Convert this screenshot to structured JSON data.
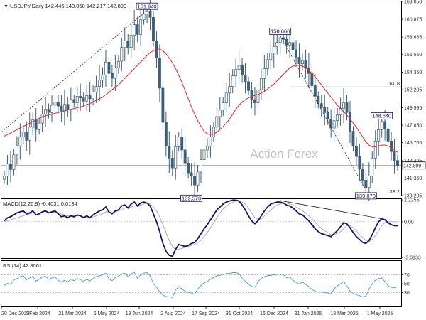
{
  "chart_data": [
    {
      "panel": "price",
      "type": "candlestick",
      "header": "USDJPY,Daily  142.445 143.050 142.217 142.899",
      "ylim": [
        139.205,
        163.05
      ],
      "y_ticks": [
        "163.050",
        "160.875",
        "158.665",
        "156.560",
        "154.350",
        "152.205",
        "149.995",
        "147.850",
        "145.705",
        "143.495",
        "141.350",
        "139.205"
      ],
      "last_price_label": "142.899",
      "last_price": 142.899,
      "watermark": "Action Forex",
      "close_series": [
        141.6,
        143.1,
        142.4,
        144.2,
        145.3,
        146.4,
        147.0,
        146.0,
        147.6,
        148.5,
        147.3,
        148.1,
        149.2,
        149.8,
        149.4,
        150.3,
        150.7,
        150.2,
        149.6,
        150.4,
        149.8,
        151.0,
        150.6,
        151.4,
        151.2,
        150.8,
        151.5,
        151.1,
        151.9,
        152.6,
        153.4,
        154.0,
        155.6,
        154.2,
        153.6,
        154.9,
        155.7,
        157.4,
        158.2,
        157.4,
        158.9,
        160.2,
        159.0,
        160.8,
        161.5,
        161.8,
        161.1,
        158.2,
        156.1,
        152.4,
        148.2,
        145.3,
        143.8,
        142.6,
        145.2,
        146.4,
        144.8,
        143.2,
        142.0,
        141.6,
        140.5,
        142.1,
        143.6,
        144.8,
        145.3,
        146.4,
        147.6,
        148.9,
        149.7,
        150.6,
        151.8,
        152.6,
        153.9,
        154.7,
        155.2,
        154.0,
        153.2,
        152.1,
        151.0,
        150.6,
        152.2,
        153.6,
        154.8,
        155.9,
        156.7,
        157.5,
        158.0,
        158.6,
        158.4,
        157.7,
        158.0,
        157.1,
        156.2,
        155.4,
        155.8,
        154.9,
        154.2,
        152.7,
        151.4,
        150.5,
        150.0,
        149.4,
        148.6,
        147.5,
        148.4,
        149.1,
        149.9,
        150.6,
        149.4,
        147.1,
        145.3,
        144.0,
        142.5,
        141.1,
        140.2,
        141.6,
        143.8,
        145.9,
        147.3,
        148.3,
        147.4,
        145.9,
        144.6,
        143.5,
        142.9
      ],
      "sma_series": [
        146.5,
        146.7,
        146.9,
        147.1,
        147.3,
        147.5,
        147.7,
        147.9,
        148.1,
        148.3,
        148.5,
        148.7,
        148.9,
        149.0,
        149.1,
        149.2,
        149.3,
        149.4,
        149.5,
        149.6,
        149.7,
        149.8,
        149.9,
        150.0,
        150.1,
        150.2,
        150.4,
        150.5,
        150.7,
        150.9,
        151.1,
        151.3,
        151.6,
        151.9,
        152.2,
        152.5,
        152.8,
        153.2,
        153.6,
        154.0,
        154.4,
        154.8,
        155.2,
        155.6,
        156.0,
        156.4,
        156.8,
        157.0,
        157.2,
        157.2,
        157.0,
        156.6,
        156.1,
        155.5,
        154.8,
        154.0,
        153.1,
        152.1,
        151.1,
        150.1,
        149.2,
        148.4,
        147.7,
        147.1,
        146.8,
        146.7,
        146.8,
        147.0,
        147.3,
        147.7,
        148.1,
        148.6,
        149.2,
        149.8,
        150.3,
        150.7,
        151.0,
        151.2,
        151.4,
        151.5,
        151.6,
        151.8,
        152.0,
        152.3,
        152.6,
        152.9,
        153.3,
        153.7,
        154.1,
        154.5,
        154.9,
        155.1,
        155.2,
        155.2,
        155.1,
        154.9,
        154.6,
        154.2,
        153.8,
        153.3,
        152.8,
        152.3,
        151.8,
        151.3,
        150.8,
        150.3,
        149.9,
        149.5,
        149.1,
        148.6,
        148.1,
        147.6,
        147.0,
        146.4,
        145.8,
        145.4,
        145.2,
        145.2,
        145.3,
        145.4,
        145.4,
        145.3,
        145.1,
        144.8,
        144.5
      ],
      "annotations": [
        {
          "text": "161.940",
          "value": 161.94
        },
        {
          "text": "139.570",
          "value": 139.57
        },
        {
          "text": "158.860",
          "value": 158.86
        },
        {
          "text": "148.640",
          "value": 148.64
        },
        {
          "text": "139.870",
          "value": 139.87
        },
        {
          "text": "61.8",
          "value": 61.8
        },
        {
          "text": "38.2",
          "value": 38.2
        }
      ]
    },
    {
      "panel": "macd",
      "type": "line",
      "header": "MACD(12,26,9) -0.4031 0.0134",
      "ylim": [
        -3.6133,
        2.2255
      ],
      "y_ticks": [
        "2.2255",
        "0.00",
        "-3.6133"
      ],
      "macd_series": [
        0.1,
        0.4,
        0.5,
        0.7,
        0.9,
        1.0,
        1.1,
        0.8,
        0.9,
        1.1,
        0.7,
        0.8,
        1.0,
        1.1,
        0.9,
        1.0,
        1.1,
        0.8,
        0.5,
        0.6,
        0.4,
        0.6,
        0.5,
        0.7,
        0.6,
        0.4,
        0.6,
        0.4,
        0.7,
        0.9,
        1.1,
        1.2,
        1.5,
        1.0,
        0.8,
        1.1,
        1.2,
        1.6,
        1.7,
        1.4,
        1.8,
        2.0,
        1.6,
        1.9,
        2.0,
        1.9,
        1.6,
        0.8,
        0.0,
        -1.0,
        -2.2,
        -3.0,
        -3.4,
        -3.5,
        -2.8,
        -2.3,
        -2.4,
        -2.5,
        -2.4,
        -2.2,
        -2.1,
        -1.7,
        -1.2,
        -0.7,
        -0.3,
        0.2,
        0.7,
        1.2,
        1.5,
        1.8,
        2.0,
        2.1,
        2.2,
        2.2,
        2.1,
        1.7,
        1.2,
        0.6,
        0.1,
        -0.2,
        0.1,
        0.6,
        1.1,
        1.5,
        1.8,
        1.9,
        2.0,
        2.0,
        1.9,
        1.7,
        1.6,
        1.4,
        1.1,
        0.8,
        0.7,
        0.4,
        0.1,
        -0.3,
        -0.7,
        -1.0,
        -1.2,
        -1.3,
        -1.4,
        -1.5,
        -1.2,
        -0.9,
        -0.5,
        -0.1,
        -0.2,
        -0.6,
        -1.1,
        -1.5,
        -1.8,
        -2.1,
        -2.2,
        -1.9,
        -1.3,
        -0.6,
        0.0,
        0.3,
        0.2,
        -0.1,
        -0.3,
        -0.4,
        -0.4031
      ],
      "signal_series": [
        0.0,
        0.1,
        0.2,
        0.3,
        0.4,
        0.5,
        0.6,
        0.7,
        0.8,
        0.9,
        0.9,
        0.9,
        0.9,
        0.9,
        0.9,
        0.9,
        1.0,
        0.9,
        0.8,
        0.7,
        0.6,
        0.6,
        0.6,
        0.6,
        0.6,
        0.5,
        0.5,
        0.5,
        0.5,
        0.6,
        0.7,
        0.8,
        1.0,
        1.0,
        0.9,
        1.0,
        1.1,
        1.2,
        1.4,
        1.4,
        1.5,
        1.6,
        1.6,
        1.7,
        1.8,
        1.9,
        1.8,
        1.5,
        1.1,
        0.5,
        -0.3,
        -1.1,
        -1.9,
        -2.5,
        -2.8,
        -2.8,
        -2.7,
        -2.6,
        -2.5,
        -2.4,
        -2.3,
        -2.1,
        -1.9,
        -1.5,
        -1.1,
        -0.6,
        -0.1,
        0.4,
        0.9,
        1.3,
        1.6,
        1.8,
        2.0,
        2.1,
        2.1,
        2.0,
        1.8,
        1.4,
        0.9,
        0.4,
        0.2,
        0.3,
        0.6,
        0.9,
        1.2,
        1.5,
        1.7,
        1.8,
        1.9,
        1.9,
        1.8,
        1.7,
        1.5,
        1.3,
        1.1,
        0.9,
        0.6,
        0.3,
        0.0,
        -0.4,
        -0.7,
        -0.9,
        -1.1,
        -1.3,
        -1.3,
        -1.2,
        -1.0,
        -0.7,
        -0.4,
        -0.4,
        -0.6,
        -0.9,
        -1.3,
        -1.6,
        -1.9,
        -2.0,
        -1.8,
        -1.4,
        -0.9,
        -0.4,
        -0.1,
        0.0,
        0.0,
        0.0,
        0.0134
      ]
    },
    {
      "panel": "rsi",
      "type": "line",
      "header": "RSI(14) 42.8061",
      "ylim": [
        0,
        100
      ],
      "levels": [
        70,
        30
      ],
      "y_ticks": [
        "70",
        "50",
        "30"
      ],
      "rsi_series": [
        46,
        51,
        48,
        58,
        62,
        66,
        68,
        59,
        63,
        67,
        56,
        60,
        65,
        67,
        60,
        63,
        65,
        58,
        53,
        58,
        54,
        60,
        57,
        62,
        59,
        55,
        60,
        56,
        62,
        66,
        68,
        70,
        74,
        61,
        57,
        64,
        67,
        72,
        74,
        66,
        72,
        76,
        62,
        70,
        74,
        75,
        68,
        50,
        42,
        32,
        24,
        21,
        20,
        19,
        36,
        44,
        38,
        33,
        30,
        29,
        26,
        38,
        46,
        52,
        55,
        60,
        64,
        68,
        69,
        71,
        73,
        73,
        75,
        75,
        73,
        62,
        56,
        49,
        44,
        42,
        55,
        62,
        66,
        68,
        69,
        70,
        71,
        72,
        70,
        63,
        65,
        58,
        53,
        49,
        54,
        48,
        44,
        37,
        33,
        31,
        32,
        30,
        29,
        27,
        38,
        45,
        50,
        55,
        45,
        33,
        28,
        25,
        23,
        20,
        22,
        38,
        50,
        58,
        62,
        63,
        55,
        45,
        42,
        41,
        42.8061
      ]
    }
  ],
  "x_ticks": [
    "20 Dec 2023",
    "6 Feb 2024",
    "21 Mar 2024",
    "6 May 2024",
    "19 Jun 2024",
    "2 Aug 2024",
    "17 Sep 2024",
    "31 Oct 2024",
    "16 Dec 2024",
    "31 Jan 2025",
    "18 Mar 2025",
    "1 May 2025"
  ],
  "colors": {
    "candle": "#3d5f7a",
    "sma": "#e82424",
    "macd": "#13136e",
    "signal": "#a8a8a8",
    "rsi": "#3f9de3",
    "label_box_text": "#12126e",
    "grid": "#9a9a9a"
  }
}
